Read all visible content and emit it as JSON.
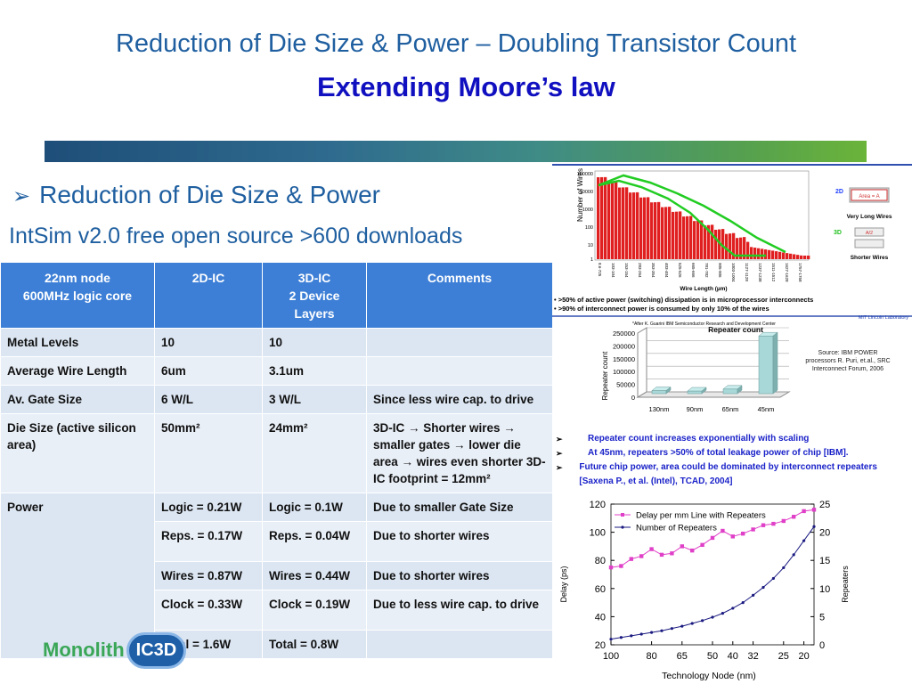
{
  "header": {
    "title": "Reduction of Die Size & Power – Doubling Transistor Count",
    "subtitle": "Extending Moore’s law"
  },
  "bullet": {
    "marker": "➢",
    "text": "Reduction of Die Size & Power"
  },
  "intsim": "IntSim v2.0 free open source >600 downloads",
  "table": {
    "headers": [
      "22nm node\n600MHz logic core",
      "2D-IC",
      "3D-IC\n2 Device Layers",
      "Comments"
    ],
    "rows": [
      [
        "Metal Levels",
        "10",
        "10",
        ""
      ],
      [
        "Average Wire Length",
        "6um",
        "3.1um",
        ""
      ],
      [
        "Av. Gate Size",
        "6 W/L",
        "3 W/L",
        "Since less wire cap. to drive"
      ],
      [
        "Die Size (active silicon area)",
        "50mm²",
        "24mm²",
        "3D-IC → Shorter wires → smaller gates → lower die area → wires even shorter 3D-IC footprint = 12mm²"
      ],
      [
        "Power",
        "Logic = 0.21W",
        "Logic = 0.1W",
        "Due to smaller Gate Size"
      ],
      [
        "",
        "Reps. = 0.17W",
        "Reps. = 0.04W",
        "Due to shorter wires"
      ],
      [
        "",
        "Wires = 0.87W",
        "Wires = 0.44W",
        "Due to shorter wires"
      ],
      [
        "",
        "Clock = 0.33W",
        "Clock = 0.19W",
        "Due to less wire cap. to drive"
      ],
      [
        "",
        "Total = 1.6W",
        "Total = 0.8W",
        ""
      ]
    ]
  },
  "wire_chart": {
    "ylabel": "Number of Wires",
    "xlabel": "Wire Length (µm)",
    "yticks": [
      "100000",
      "10000",
      "1000",
      "100",
      "10",
      "1"
    ],
    "xticks": [
      "8.6-725",
      "103-104",
      "153-154",
      "283-264",
      "353-354",
      "403-404",
      "525-526",
      "665-666",
      "781-782",
      "905-906",
      "1003-1004",
      "1127-1128",
      "1237-1238",
      "1511-1512",
      "1627-1628",
      "1757-1758"
    ],
    "legend_2d": "2D",
    "legend_2d_box": "Area = A",
    "legend_2d_caption": "Very Long Wires",
    "legend_3d": "3D",
    "legend_3d_box": "A/2",
    "legend_3d_caption": "Shorter Wires",
    "note1": "• >50% of  active power (switching) dissipation is in microprocessor interconnects",
    "note2": "• >90% of interconnect power is consumed by only 10% of the wires",
    "credit": "MIT Lincoln Laboratory",
    "after": "*After K. Guarini IBM Semiconductor Research and Development Center"
  },
  "repeater_bar": {
    "title": "Repeater count",
    "ylabel": "Repeater count",
    "yticks": [
      "250000",
      "200000",
      "150000",
      "100000",
      "50000",
      "0"
    ],
    "categories": [
      "130nm",
      "90nm",
      "65nm",
      "45nm"
    ],
    "values": [
      12000,
      4000,
      18000,
      225000
    ],
    "source": "Source: IBM POWER processors R. Puri, et.al., SRC Interconnect Forum, 2006"
  },
  "repeater_notes": [
    "Repeater count increases exponentially with scaling",
    "At 45nm, repeaters  >50% of total leakage power of chip [IBM].",
    "Future chip power, area could be dominated by interconnect repeaters [Saxena P., et al. (Intel), TCAD, 2004]"
  ],
  "chart_data": {
    "type": "line",
    "xlabel": "Technology Node (nm)",
    "ylabel": "Delay (ps)",
    "y2label": "Repeaters",
    "x": [
      100,
      95,
      90,
      85,
      80,
      75,
      70,
      65,
      60,
      55,
      50,
      45,
      40,
      35,
      32,
      30,
      28,
      25,
      22,
      20,
      18
    ],
    "xticks": [
      "100",
      "80",
      "65",
      "50",
      "40",
      "32",
      "25",
      "20"
    ],
    "ylim": [
      20,
      120
    ],
    "y2lim": [
      0,
      25
    ],
    "series": [
      {
        "name": "Delay per mm Line with Repeaters",
        "axis": "left",
        "color": "#e040c8",
        "values": [
          75,
          76,
          81,
          83,
          88,
          84,
          85,
          90,
          87,
          91,
          96,
          101,
          97,
          99,
          102,
          105,
          106,
          108,
          111,
          115,
          116
        ]
      },
      {
        "name": "Number of Repeaters",
        "axis": "right",
        "color": "#1a1a80",
        "values": [
          1.0,
          1.3,
          1.6,
          1.9,
          2.2,
          2.5,
          2.9,
          3.3,
          3.8,
          4.3,
          4.9,
          5.6,
          6.5,
          7.5,
          8.8,
          10.2,
          11.8,
          13.7,
          16.0,
          18.5,
          21.0
        ]
      }
    ]
  },
  "logo": {
    "text": "Monolith",
    "badge": "IC3D"
  }
}
